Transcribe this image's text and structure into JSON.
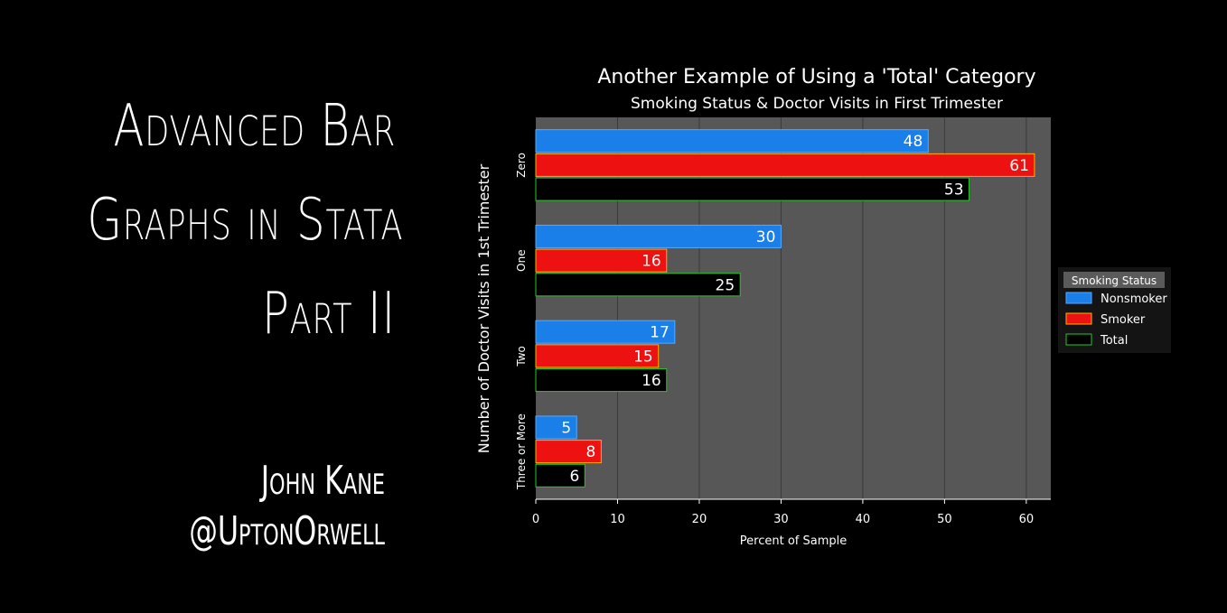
{
  "hero": {
    "title_lines": [
      "Advanced Bar",
      "Graphs in Stata",
      "Part II"
    ],
    "author": "John Kane",
    "handle": "@UptonOrwell"
  },
  "chart_data": {
    "type": "bar",
    "orientation": "horizontal",
    "title": "Another Example of Using a 'Total' Category",
    "subtitle": "Smoking Status & Doctor Visits in First Trimester",
    "xlabel": "Percent of Sample",
    "ylabel": "Number of Doctor Visits in 1st Trimester",
    "categories": [
      "Zero",
      "One",
      "Two",
      "Three or More"
    ],
    "series": [
      {
        "name": "Nonsmoker",
        "values": [
          48,
          30,
          17,
          5
        ],
        "fill": "#1a7fe8",
        "stroke": "#55aaff"
      },
      {
        "name": "Smoker",
        "values": [
          61,
          16,
          15,
          8
        ],
        "fill": "#ee1111",
        "stroke": "#ffb000"
      },
      {
        "name": "Total",
        "values": [
          53,
          25,
          16,
          6
        ],
        "fill": "#000000",
        "stroke": "#22cc22"
      }
    ],
    "xlim": [
      0,
      63
    ],
    "xticks": [
      0,
      10,
      20,
      30,
      40,
      50,
      60
    ],
    "grid": true,
    "legend": {
      "title": "Smoking Status",
      "placement": "right"
    },
    "colors": {
      "plot_bg": "#575757",
      "grid": "#3a3a3a",
      "background": "#000000"
    }
  }
}
